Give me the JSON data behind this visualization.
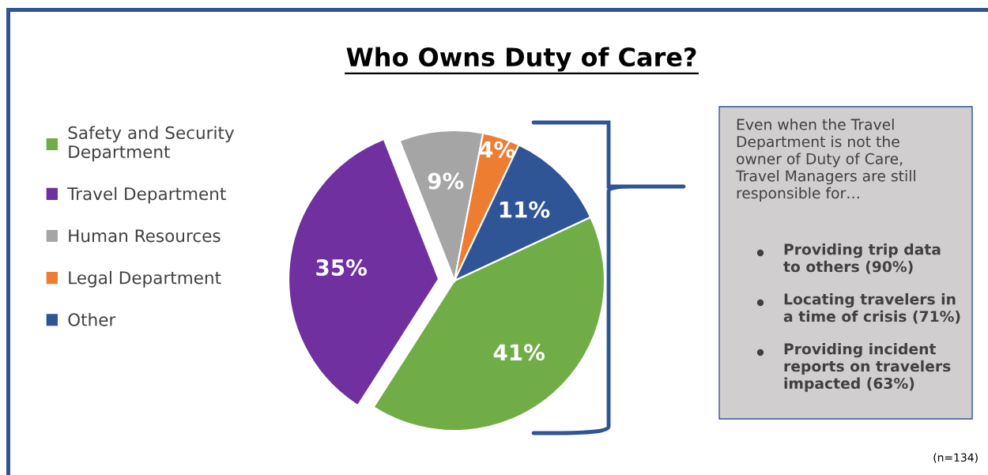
{
  "chart_data": {
    "type": "pie",
    "title": "Who Owns Duty of Care?",
    "categories": [
      "Safety and Security\nDepartment",
      "Travel Department",
      "Human Resources",
      "Legal Department",
      "Other"
    ],
    "values": [
      41,
      35,
      9,
      4,
      11
    ],
    "colors": [
      "#70ad47",
      "#7030a0",
      "#a5a5a5",
      "#ed7d31",
      "#2f5597"
    ],
    "value_labels": [
      "41%",
      "35%",
      "9%",
      "4%",
      "11%"
    ],
    "legend": "left",
    "annotations": [
      "Even when the Travel\nDepartment is not the\nowner of Duty of Care,\nTravel Managers are still\nresponsible for…",
      "Providing trip data\nto others (90%)",
      "Locating travelers in\na time of crisis (71%)",
      "Providing incident\nreports on travelers\nimpacted (63%)",
      "(n=134)"
    ]
  }
}
